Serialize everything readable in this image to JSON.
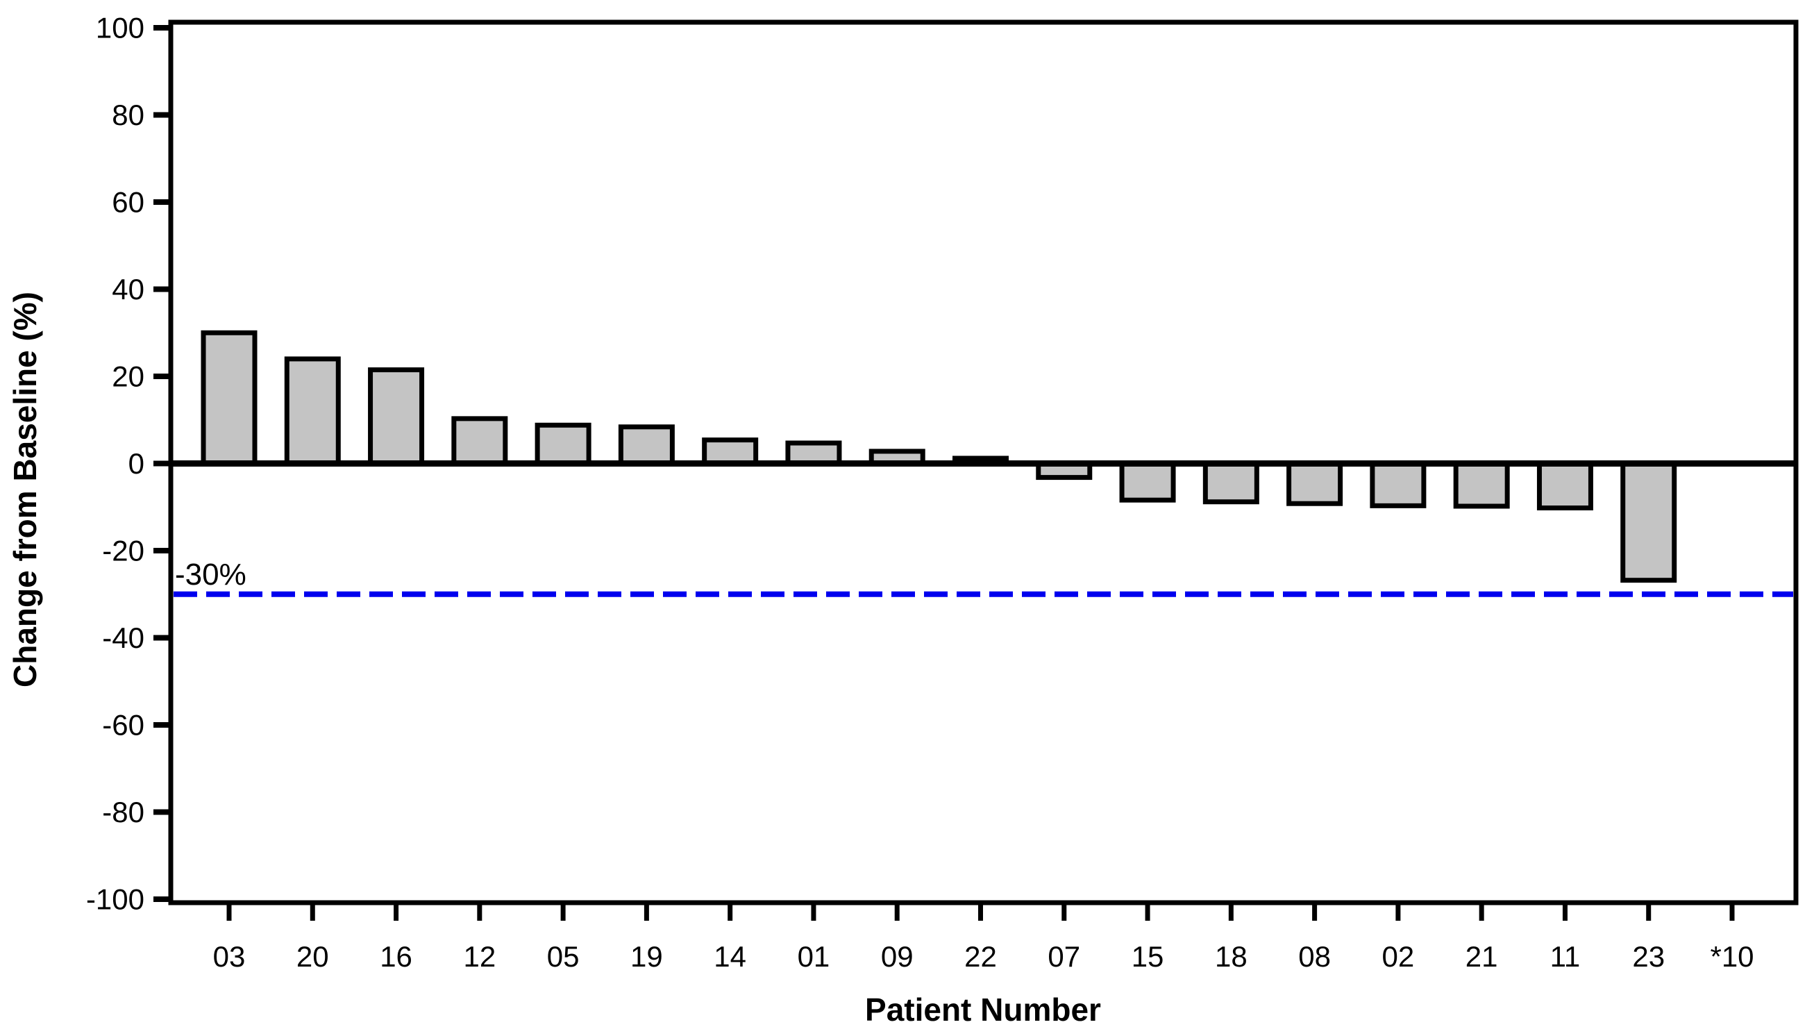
{
  "chart_data": {
    "type": "bar",
    "title": "",
    "xlabel": "Patient Number",
    "ylabel": "Change from Baseline (%)",
    "ylim": [
      -100,
      100
    ],
    "ytick_step": 20,
    "categories": [
      "03",
      "20",
      "16",
      "12",
      "05",
      "19",
      "14",
      "01",
      "09",
      "22",
      "07",
      "15",
      "18",
      "08",
      "02",
      "21",
      "11",
      "23",
      "*10"
    ],
    "values": [
      30,
      24,
      21.5,
      10.3,
      8.8,
      8.4,
      5.4,
      4.7,
      2.8,
      1.2,
      -3.2,
      -8.4,
      -8.8,
      -9.2,
      -9.7,
      -9.8,
      -10.2,
      -26.8,
      null
    ],
    "reference_line": {
      "y": -30,
      "label": "-30%",
      "color": "#0000EE",
      "style": "dashed"
    },
    "bar_fill": "#C4C4C4",
    "bar_stroke": "#000000",
    "axis_color": "#000000",
    "background": "#FFFFFF",
    "grid": false,
    "legend": false
  }
}
